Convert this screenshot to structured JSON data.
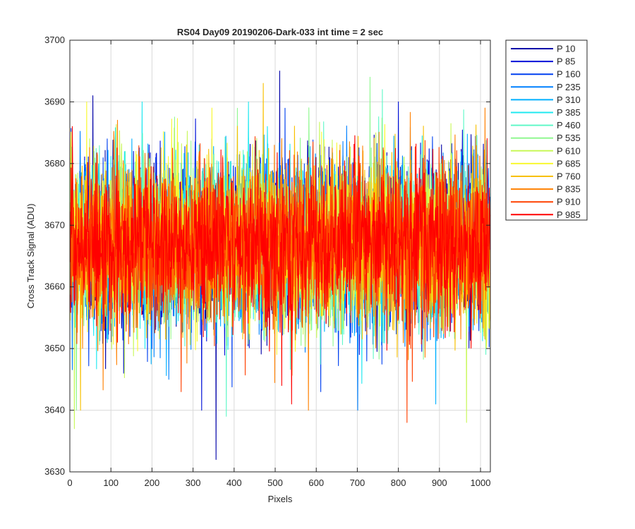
{
  "chart_data": {
    "type": "line",
    "title": "RS04 Day09 20190206-Dark-033 int time = 2 sec",
    "xlabel": "Pixels",
    "ylabel": "Cross Track Signal (ADU)",
    "xlim": [
      0,
      1024
    ],
    "ylim": [
      3630,
      3700
    ],
    "x_ticks": [
      0,
      100,
      200,
      300,
      400,
      500,
      600,
      700,
      800,
      900,
      1000
    ],
    "y_ticks": [
      3630,
      3640,
      3650,
      3660,
      3670,
      3680,
      3690,
      3700
    ],
    "grid": true,
    "legend_position": "outside-right",
    "noise": {
      "mean": 3667,
      "std": 6.5,
      "points_per_series": 1024
    },
    "series": [
      {
        "name": "P 10",
        "color": "#0000A8",
        "extremes": [
          [
            55,
            3691
          ],
          [
            355,
            3632
          ],
          [
            510,
            3695
          ]
        ]
      },
      {
        "name": "P 85",
        "color": "#0010D8",
        "extremes": [
          [
            130,
            3646
          ],
          [
            320,
            3640
          ]
        ]
      },
      {
        "name": "P 160",
        "color": "#0040F0",
        "extremes": [
          [
            90,
            3684
          ],
          [
            610,
            3643
          ]
        ]
      },
      {
        "name": "P 235",
        "color": "#0080FF",
        "extremes": [
          [
            240,
            3645
          ],
          [
            700,
            3640
          ]
        ]
      },
      {
        "name": "P 310",
        "color": "#00B0FF",
        "extremes": [
          [
            150,
            3684
          ],
          [
            890,
            3641
          ]
        ]
      },
      {
        "name": "P 385",
        "color": "#20E8F0",
        "extremes": [
          [
            175,
            3690
          ],
          [
            480,
            3686
          ]
        ]
      },
      {
        "name": "P 460",
        "color": "#60F8C8",
        "extremes": [
          [
            380,
            3639
          ],
          [
            760,
            3692
          ]
        ]
      },
      {
        "name": "P 535",
        "color": "#90F890",
        "extremes": [
          [
            730,
            3694
          ],
          [
            15,
            3640
          ]
        ]
      },
      {
        "name": "P 610",
        "color": "#C8F858",
        "extremes": [
          [
            10,
            3637
          ],
          [
            965,
            3638
          ]
        ]
      },
      {
        "name": "P 685",
        "color": "#F8F830",
        "extremes": [
          [
            40,
            3690
          ],
          [
            345,
            3689
          ]
        ]
      },
      {
        "name": "P 760",
        "color": "#F8C000",
        "extremes": [
          [
            470,
            3693
          ],
          [
            25,
            3640
          ]
        ]
      },
      {
        "name": "P 835",
        "color": "#FF8000",
        "extremes": [
          [
            580,
            3640
          ],
          [
            1010,
            3689
          ]
        ]
      },
      {
        "name": "P 910",
        "color": "#FF4000",
        "extremes": [
          [
            820,
            3638
          ],
          [
            270,
            3643
          ]
        ]
      },
      {
        "name": "P 985",
        "color": "#FF0000",
        "extremes": [
          [
            5,
            3686
          ],
          [
            515,
            3644
          ]
        ]
      }
    ]
  }
}
